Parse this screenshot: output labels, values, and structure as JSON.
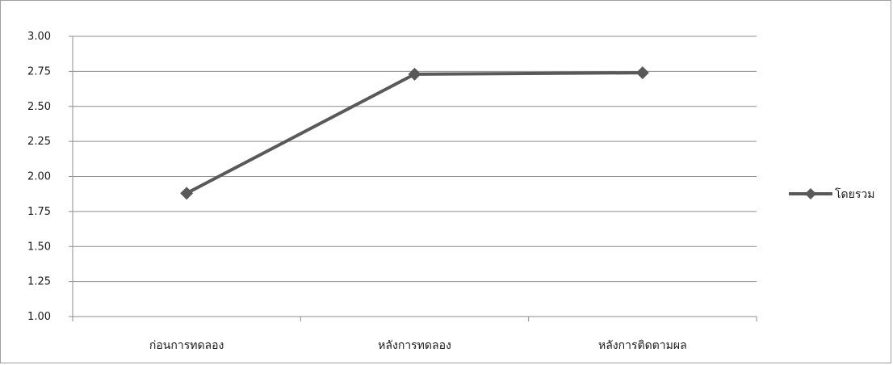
{
  "chart_data": {
    "type": "line",
    "categories": [
      "ก่อนการทดลอง",
      "หลังการทดลอง",
      "หลังการติดตามผล"
    ],
    "series": [
      {
        "name": "โดยรวม",
        "values": [
          1.88,
          2.73,
          2.74
        ]
      }
    ],
    "yticks": [
      "1.00",
      "1.25",
      "1.50",
      "1.75",
      "2.00",
      "2.25",
      "2.50",
      "2.75",
      "3.00"
    ],
    "ylim": [
      1.0,
      3.0
    ],
    "grid": true,
    "legend_position": "right",
    "colors": {
      "line": "#595959",
      "grid": "#8c8c8c",
      "axis": "#8c8c8c"
    }
  }
}
